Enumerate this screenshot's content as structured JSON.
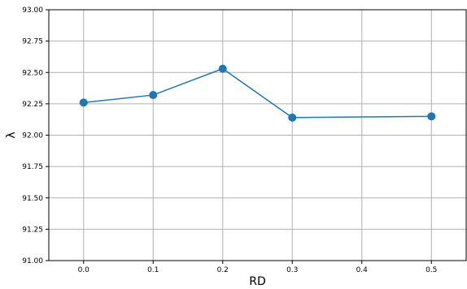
{
  "chart_data": {
    "type": "line",
    "title": "",
    "xlabel": "RD",
    "ylabel": "λ",
    "x": [
      0.0,
      0.1,
      0.2,
      0.3,
      0.5
    ],
    "series": [
      {
        "values": [
          92.26,
          92.32,
          92.53,
          92.14,
          92.15
        ],
        "color": "#1f77b4",
        "marker": "circle"
      }
    ],
    "xlim": [
      -0.05,
      0.55
    ],
    "ylim": [
      91.0,
      93.0
    ],
    "xticks": [
      "0.0",
      "0.1",
      "0.2",
      "0.3",
      "0.4",
      "0.5"
    ],
    "yticks": [
      "91.00",
      "91.25",
      "91.50",
      "91.75",
      "92.00",
      "92.25",
      "92.50",
      "92.75",
      "93.00"
    ],
    "grid": true,
    "legend": "none"
  }
}
